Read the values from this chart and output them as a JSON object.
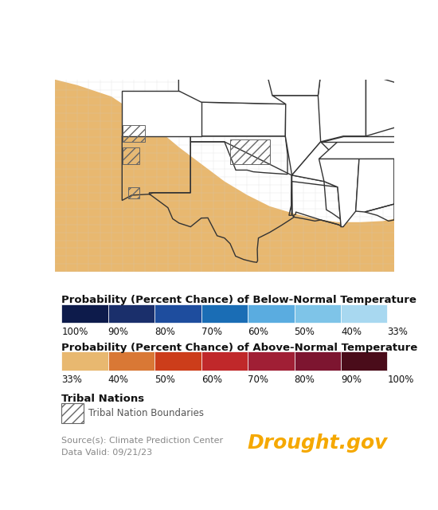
{
  "below_normal_colors": [
    "#0d1b4b",
    "#1a2f6b",
    "#1e4d9e",
    "#1a6db5",
    "#5aace0",
    "#7ec4e8",
    "#a8d8f0"
  ],
  "below_normal_labels": [
    "100%",
    "90%",
    "80%",
    "70%",
    "60%",
    "50%",
    "40%",
    "33%"
  ],
  "above_normal_colors": [
    "#e8b870",
    "#d97835",
    "#cc3d1a",
    "#c0282a",
    "#a01f35",
    "#7d1530",
    "#4a0c1a"
  ],
  "above_normal_labels": [
    "33%",
    "40%",
    "50%",
    "60%",
    "70%",
    "80%",
    "90%",
    "100%"
  ],
  "below_normal_title": "Probability (Percent Chance) of Below-Normal Temperature",
  "above_normal_title": "Probability (Percent Chance) of Above-Normal Temperature",
  "tribal_title": "Tribal Nations",
  "tribal_label": "Tribal Nation Boundaries",
  "source_text": "Source(s): Climate Prediction Center",
  "data_valid_text": "Data Valid: 09/21/23",
  "drought_gov_text": "Drought.gov",
  "drought_gov_color": "#f5a800",
  "map_orange_color": "#e8b870",
  "background_color": "#ffffff",
  "title_fontsize": 9.5,
  "label_fontsize": 8.5,
  "small_fontsize": 8,
  "drought_fontsize": 18,
  "fig_width": 5.5,
  "fig_height": 6.4,
  "orange_boundary": [
    [
      -115,
      42
    ],
    [
      -113,
      41.5
    ],
    [
      -110,
      40.5
    ],
    [
      -107,
      38.5
    ],
    [
      -104,
      36
    ],
    [
      -102,
      34.5
    ],
    [
      -100,
      33
    ],
    [
      -98,
      31.8
    ],
    [
      -96,
      30.8
    ],
    [
      -94,
      30.2
    ],
    [
      -92,
      29.7
    ],
    [
      -90,
      29.4
    ],
    [
      -88,
      29.4
    ],
    [
      -86,
      29.5
    ],
    [
      -85,
      29.7
    ],
    [
      -85,
      24
    ],
    [
      -115,
      24
    ]
  ]
}
